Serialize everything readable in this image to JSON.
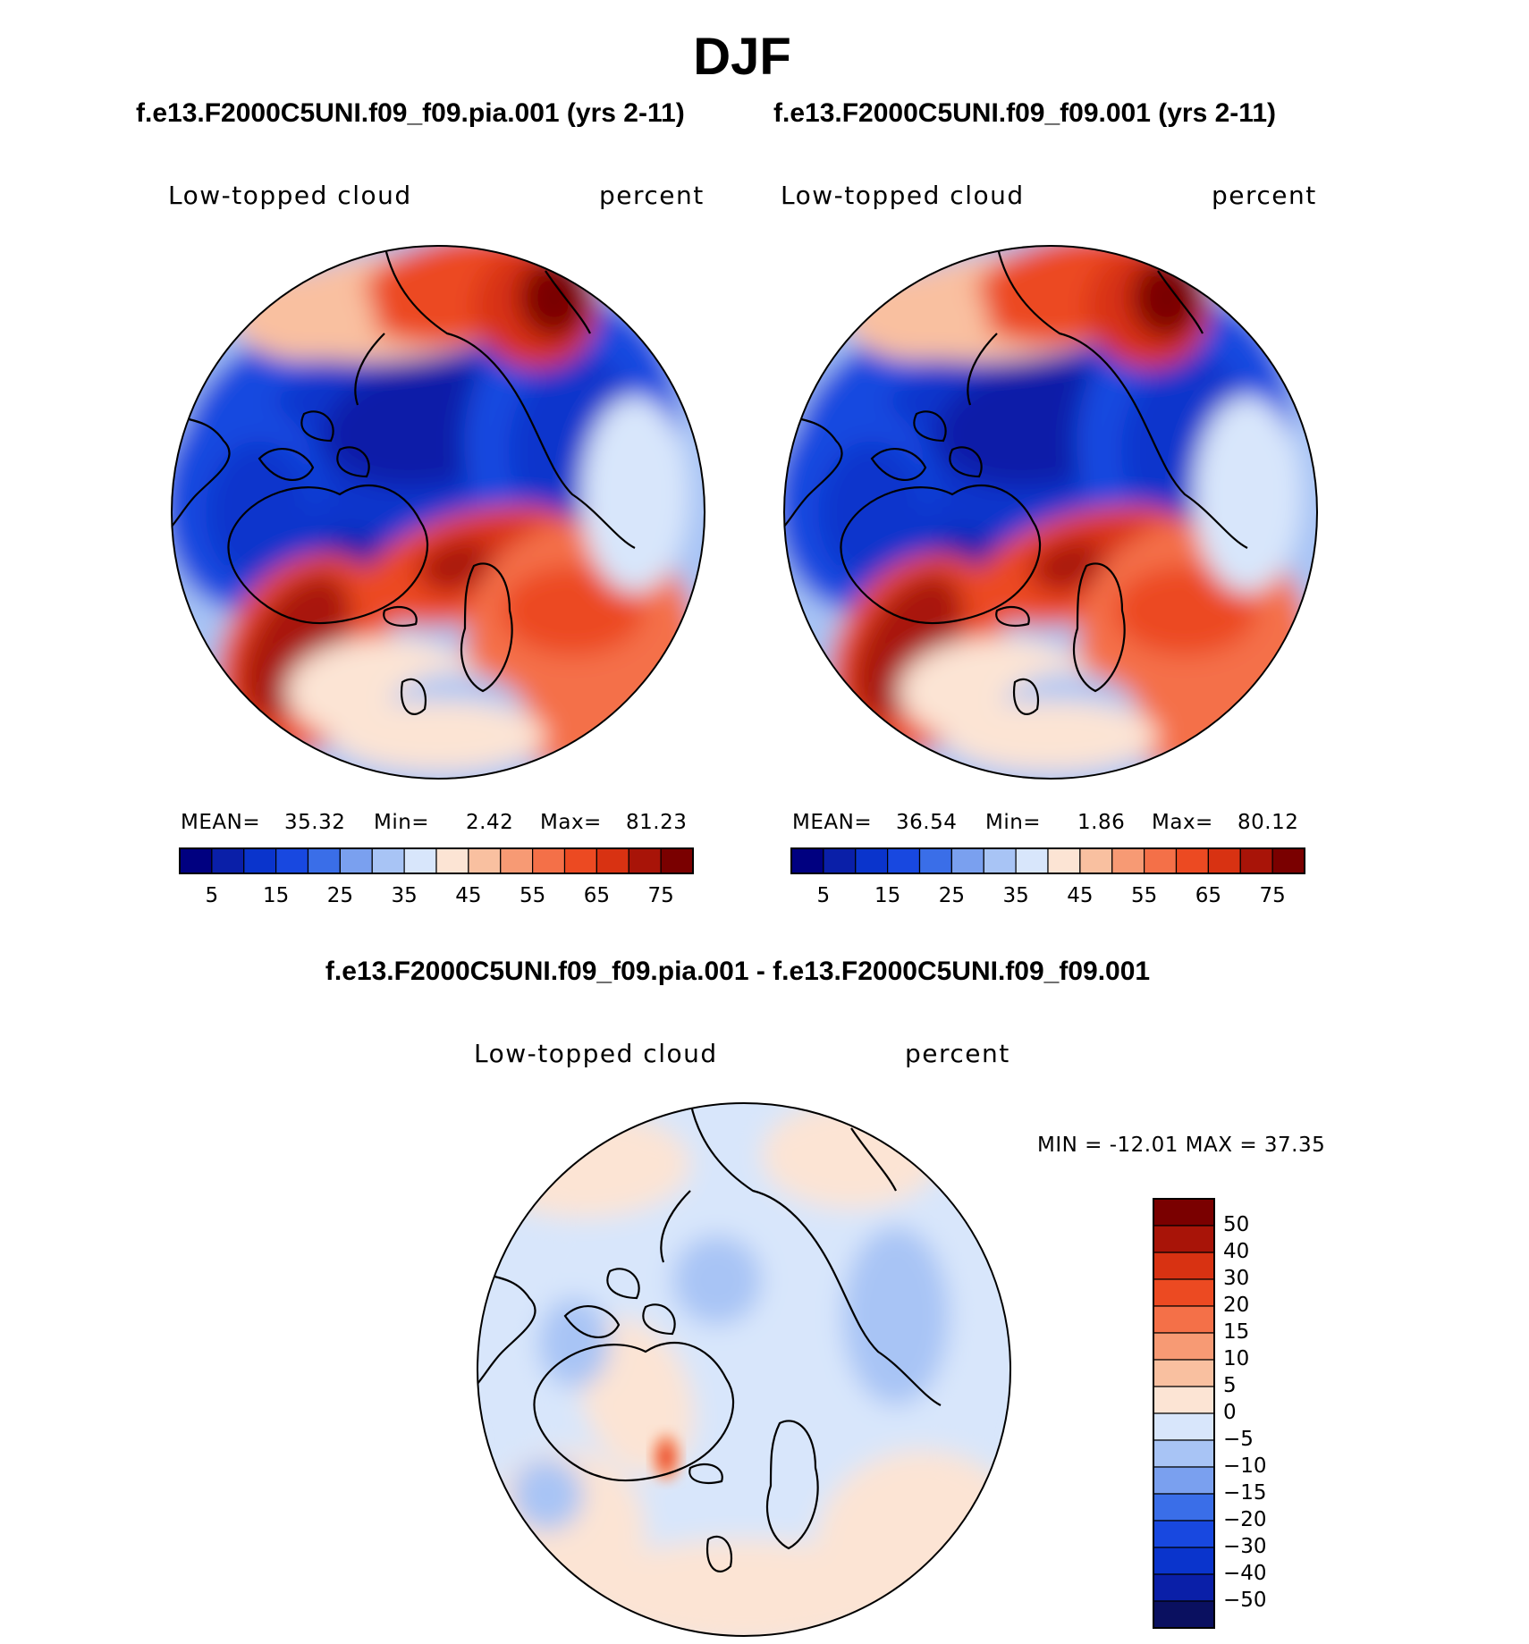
{
  "figure": {
    "title": "DJF",
    "difference_title": "f.e13.F2000C5UNI.f09_f09.pia.001 - f.e13.F2000C5UNI.f09_f09.001"
  },
  "colors": {
    "abs_scale": [
      "#000080",
      "#0a1fa8",
      "#0a34cc",
      "#1848e0",
      "#3a6ee8",
      "#7aa0ef",
      "#a8c4f5",
      "#d8e6fb",
      "#fce4d4",
      "#f9c0a0",
      "#f79a74",
      "#f47048",
      "#ec4a22",
      "#d83212",
      "#a81408",
      "#7a0000"
    ],
    "diff_scale": [
      "#0a1060",
      "#0a1fa8",
      "#0a34cc",
      "#1848e0",
      "#3a6ee8",
      "#7aa0ef",
      "#a8c4f5",
      "#d8e6fb",
      "#fce4d4",
      "#f9c0a0",
      "#f79a74",
      "#f47048",
      "#ec4a22",
      "#d83212",
      "#a81408",
      "#7a0000"
    ],
    "coast": "#000000"
  },
  "chart_data": [
    {
      "type": "heatmap",
      "title": "f.e13.F2000C5UNI.f09_f09.pia.001 (yrs 2-11)",
      "variable": "Low-topped cloud",
      "units": "percent",
      "projection": "north polar stereographic",
      "stats": {
        "mean_label": "MEAN=",
        "mean": "35.32",
        "min_label": "Min=",
        "min": "2.42",
        "max_label": "Max=",
        "max": "81.23"
      },
      "colorbar_ticks": [
        "5",
        "15",
        "25",
        "35",
        "45",
        "55",
        "65",
        "75"
      ]
    },
    {
      "type": "heatmap",
      "title": "f.e13.F2000C5UNI.f09_f09.001 (yrs 2-11)",
      "variable": "Low-topped cloud",
      "units": "percent",
      "projection": "north polar stereographic",
      "stats": {
        "mean_label": "MEAN=",
        "mean": "36.54",
        "min_label": "Min=",
        "min": "1.86",
        "max_label": "Max=",
        "max": "80.12"
      },
      "colorbar_ticks": [
        "5",
        "15",
        "25",
        "35",
        "45",
        "55",
        "65",
        "75"
      ]
    },
    {
      "type": "heatmap",
      "title": "f.e13.F2000C5UNI.f09_f09.pia.001 - f.e13.F2000C5UNI.f09_f09.001",
      "variable": "Low-topped cloud",
      "units": "percent",
      "projection": "north polar stereographic",
      "stats": {
        "text": "MIN = -12.01 MAX =   37.35"
      },
      "colorbar_ticks": [
        "50",
        "40",
        "30",
        "20",
        "15",
        "10",
        "5",
        "0",
        "−5",
        "−10",
        "−15",
        "−20",
        "−30",
        "−40",
        "−50"
      ]
    }
  ]
}
